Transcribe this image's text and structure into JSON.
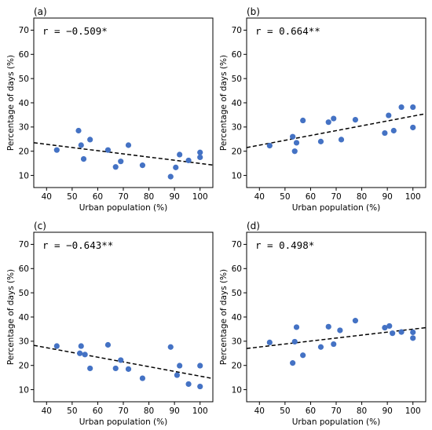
{
  "chart_data": [
    {
      "type": "scatter",
      "panel_label": "(a)",
      "annotation": "r = −0.509*",
      "xlabel": "Urban population (%)",
      "ylabel": "Percentage of days (%)",
      "xlim": [
        35,
        105
      ],
      "ylim": [
        5,
        75
      ],
      "xticks": [
        40,
        50,
        60,
        70,
        80,
        90,
        100
      ],
      "yticks": [
        10,
        20,
        30,
        40,
        50,
        60,
        70
      ],
      "trendline": {
        "style": "dashed",
        "y_at_x35": 23.5,
        "y_at_x105": 14.3
      },
      "points": [
        {
          "x": 44,
          "y": 20.5
        },
        {
          "x": 52.5,
          "y": 28.5
        },
        {
          "x": 53.5,
          "y": 22.5
        },
        {
          "x": 54.5,
          "y": 16.8
        },
        {
          "x": 57,
          "y": 24.8
        },
        {
          "x": 64,
          "y": 20.5
        },
        {
          "x": 67,
          "y": 13.5
        },
        {
          "x": 69,
          "y": 15.8
        },
        {
          "x": 72,
          "y": 22.5
        },
        {
          "x": 77.5,
          "y": 14.2
        },
        {
          "x": 88.5,
          "y": 9.5
        },
        {
          "x": 90.5,
          "y": 13.3
        },
        {
          "x": 92,
          "y": 18.6
        },
        {
          "x": 95.5,
          "y": 16.2
        },
        {
          "x": 100,
          "y": 19.5
        },
        {
          "x": 100,
          "y": 17.5
        }
      ]
    },
    {
      "type": "scatter",
      "panel_label": "(b)",
      "annotation": "r = 0.664**",
      "xlabel": "Urban population (%)",
      "ylabel": "Percentage of days (%)",
      "xlim": [
        35,
        105
      ],
      "ylim": [
        5,
        75
      ],
      "xticks": [
        40,
        50,
        60,
        70,
        80,
        90,
        100
      ],
      "yticks": [
        10,
        20,
        30,
        40,
        50,
        60,
        70
      ],
      "trendline": {
        "style": "dashed",
        "y_at_x35": 21.5,
        "y_at_x105": 35.5
      },
      "points": [
        {
          "x": 44,
          "y": 22.3
        },
        {
          "x": 53,
          "y": 26
        },
        {
          "x": 53.8,
          "y": 20
        },
        {
          "x": 54.5,
          "y": 23.5
        },
        {
          "x": 57,
          "y": 32.7
        },
        {
          "x": 64,
          "y": 24
        },
        {
          "x": 67,
          "y": 32
        },
        {
          "x": 69,
          "y": 33.5
        },
        {
          "x": 72,
          "y": 24.8
        },
        {
          "x": 77.5,
          "y": 33
        },
        {
          "x": 89,
          "y": 27.5
        },
        {
          "x": 90.5,
          "y": 34.8
        },
        {
          "x": 92.5,
          "y": 28.5
        },
        {
          "x": 95.5,
          "y": 38.2
        },
        {
          "x": 100,
          "y": 38.2
        },
        {
          "x": 100,
          "y": 29.8
        }
      ]
    },
    {
      "type": "scatter",
      "panel_label": "(c)",
      "annotation": "r = −0.643**",
      "xlabel": "Urban population (%)",
      "ylabel": "Percentage of days (%)",
      "xlim": [
        35,
        105
      ],
      "ylim": [
        5,
        75
      ],
      "xticks": [
        40,
        50,
        60,
        70,
        80,
        90,
        100
      ],
      "yticks": [
        10,
        20,
        30,
        40,
        50,
        60,
        70
      ],
      "trendline": {
        "style": "dashed",
        "y_at_x35": 28.3,
        "y_at_x105": 14.6
      },
      "points": [
        {
          "x": 44,
          "y": 28
        },
        {
          "x": 53,
          "y": 25
        },
        {
          "x": 53.5,
          "y": 28
        },
        {
          "x": 55,
          "y": 24.5
        },
        {
          "x": 57,
          "y": 18.8
        },
        {
          "x": 64,
          "y": 28.5
        },
        {
          "x": 67,
          "y": 18.8
        },
        {
          "x": 69,
          "y": 22.2
        },
        {
          "x": 72,
          "y": 18.5
        },
        {
          "x": 77.5,
          "y": 14.7
        },
        {
          "x": 88.5,
          "y": 27.6
        },
        {
          "x": 91,
          "y": 16
        },
        {
          "x": 92,
          "y": 19.9
        },
        {
          "x": 95.5,
          "y": 12.3
        },
        {
          "x": 100,
          "y": 19.9
        },
        {
          "x": 100,
          "y": 11.3
        }
      ]
    },
    {
      "type": "scatter",
      "panel_label": "(d)",
      "annotation": "r = 0.498*",
      "xlabel": "Urban population (%)",
      "ylabel": "Percentage of days (%)",
      "xlim": [
        35,
        105
      ],
      "ylim": [
        5,
        75
      ],
      "xticks": [
        40,
        50,
        60,
        70,
        80,
        90,
        100
      ],
      "yticks": [
        10,
        20,
        30,
        40,
        50,
        60,
        70
      ],
      "trendline": {
        "style": "dashed",
        "y_at_x35": 27,
        "y_at_x105": 35.6
      },
      "points": [
        {
          "x": 44,
          "y": 29.5
        },
        {
          "x": 53,
          "y": 21
        },
        {
          "x": 53.8,
          "y": 29.8
        },
        {
          "x": 54.5,
          "y": 35.8
        },
        {
          "x": 57,
          "y": 24.2
        },
        {
          "x": 64,
          "y": 27.6
        },
        {
          "x": 67,
          "y": 36
        },
        {
          "x": 69,
          "y": 28.8
        },
        {
          "x": 71.5,
          "y": 34.5
        },
        {
          "x": 77.5,
          "y": 38.5
        },
        {
          "x": 89,
          "y": 35.6
        },
        {
          "x": 90.8,
          "y": 36.3
        },
        {
          "x": 92,
          "y": 33.3
        },
        {
          "x": 95.5,
          "y": 33.8
        },
        {
          "x": 100,
          "y": 33.7
        },
        {
          "x": 100,
          "y": 31.3
        }
      ]
    }
  ]
}
